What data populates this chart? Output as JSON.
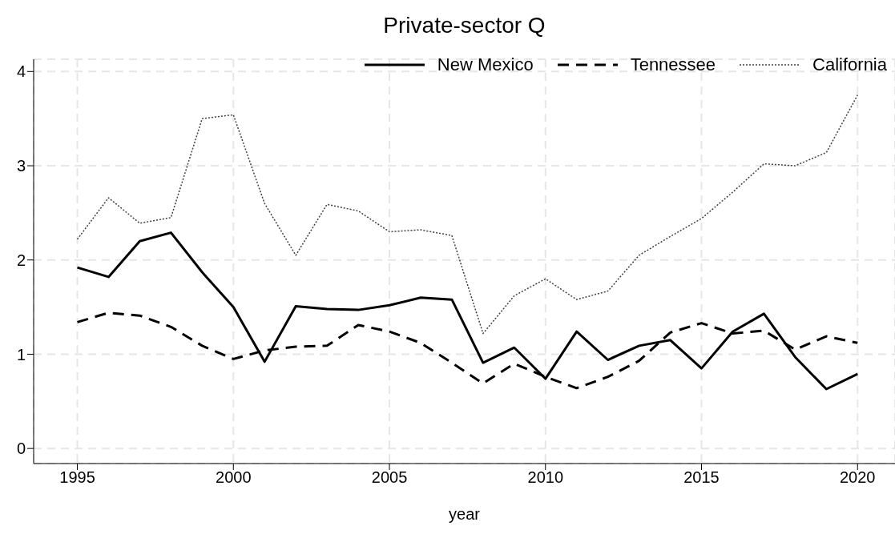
{
  "chart_data": {
    "type": "line",
    "title": "Private-sector Q",
    "xlabel": "year",
    "x": [
      1995,
      1996,
      1997,
      1998,
      1999,
      2000,
      2001,
      2002,
      2003,
      2004,
      2005,
      2006,
      2007,
      2008,
      2009,
      2010,
      2011,
      2012,
      2013,
      2014,
      2015,
      2016,
      2017,
      2018,
      2019,
      2020
    ],
    "series": [
      {
        "name": "New Mexico",
        "color": "#000000",
        "line_style": "solid",
        "values": [
          1.92,
          1.82,
          2.2,
          2.29,
          1.87,
          1.5,
          0.92,
          1.51,
          1.48,
          1.47,
          1.52,
          1.6,
          1.58,
          0.91,
          1.07,
          0.74,
          1.24,
          0.94,
          1.09,
          1.15,
          0.85,
          1.24,
          1.43,
          0.97,
          0.63,
          0.79
        ]
      },
      {
        "name": "Tennessee",
        "color": "#000000",
        "line_style": "dashed",
        "values": [
          1.34,
          1.44,
          1.41,
          1.29,
          1.09,
          0.95,
          1.04,
          1.08,
          1.09,
          1.31,
          1.24,
          1.12,
          0.91,
          0.69,
          0.9,
          0.76,
          0.64,
          0.76,
          0.93,
          1.23,
          1.33,
          1.22,
          1.25,
          1.05,
          1.19,
          1.12
        ]
      },
      {
        "name": "California",
        "color": "#404040",
        "line_style": "dotted",
        "values": [
          2.22,
          2.66,
          2.39,
          2.45,
          3.5,
          3.54,
          2.6,
          2.05,
          2.59,
          2.52,
          2.3,
          2.32,
          2.26,
          1.22,
          1.62,
          1.8,
          1.58,
          1.67,
          2.05,
          2.25,
          2.44,
          2.72,
          3.02,
          3.0,
          3.14,
          3.75
        ]
      }
    ],
    "xlim": [
      1993.6,
      2021.2
    ],
    "xticks": [
      1995,
      2000,
      2005,
      2010,
      2015,
      2020
    ],
    "ylim": [
      -0.16,
      4.13
    ],
    "yticks": [
      0,
      1,
      2,
      3,
      4
    ],
    "grid": true,
    "legend": "top right",
    "marker": "none"
  }
}
